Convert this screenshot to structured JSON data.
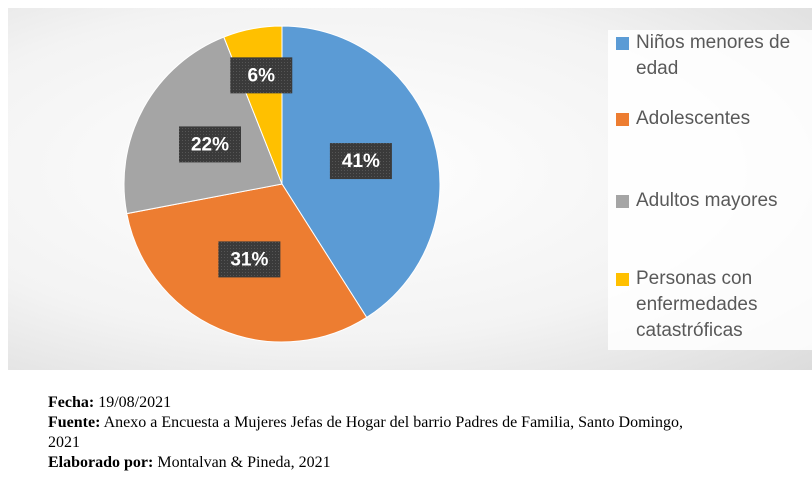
{
  "chart_data": {
    "type": "pie",
    "categories": [
      "Niños menores de edad",
      "Adolescentes",
      "Adultos mayores",
      "Personas con enfermedades catastróficas"
    ],
    "values": [
      41,
      31,
      22,
      6
    ],
    "value_labels": [
      "41%",
      "31%",
      "22%",
      "6%"
    ],
    "colors": [
      "#5b9bd5",
      "#ed7d31",
      "#a5a5a5",
      "#ffc000"
    ],
    "legend": "right"
  },
  "footer": [
    {
      "label": "Fecha:",
      "text": "19/08/2021"
    },
    {
      "label": "Fuente:",
      "text": "Anexo a Encuesta a Mujeres Jefas de Hogar del barrio Padres de Familia, Santo Domingo, 2021"
    },
    {
      "label": "Elaborado por:",
      "text": "Montalvan & Pineda, 2021"
    }
  ]
}
